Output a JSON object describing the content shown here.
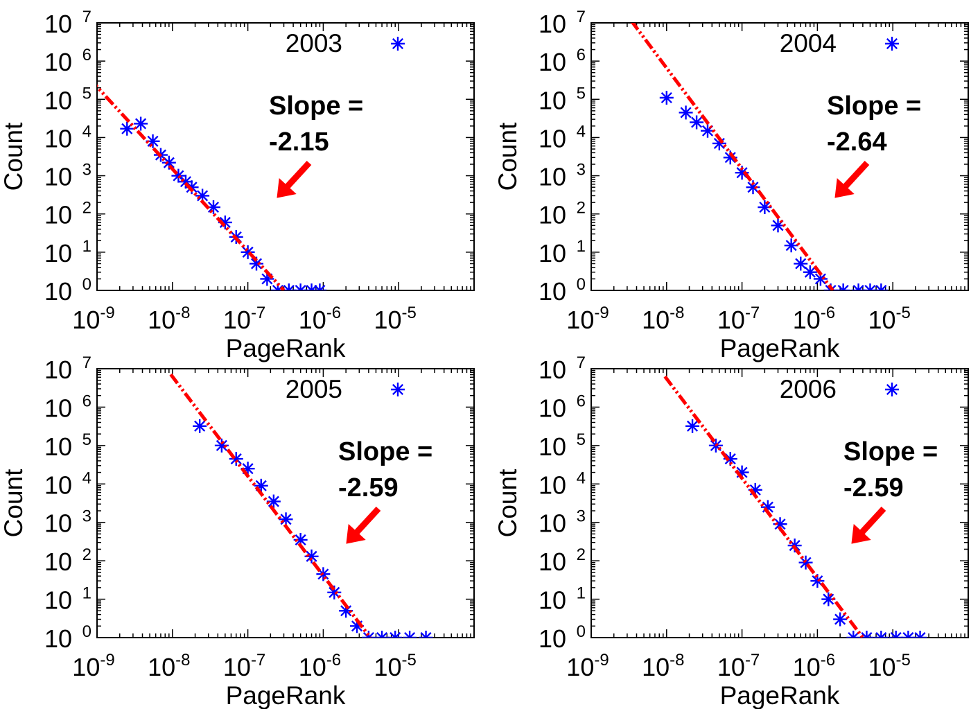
{
  "chart_data": [
    {
      "type": "scatter",
      "title": "",
      "xlabel": "PageRank",
      "ylabel": "Count",
      "xscale": "log",
      "yscale": "log",
      "xlim": [
        1e-09,
        0.0001
      ],
      "ylim": [
        1,
        10000000
      ],
      "x_tick_exponents": [
        "-9",
        "-8",
        "-7",
        "-6",
        "-5"
      ],
      "y_tick_exponents": [
        "0",
        "1",
        "2",
        "3",
        "4",
        "5",
        "6",
        "7"
      ],
      "tick_base": "10",
      "legend": {
        "label": "2003",
        "marker": "asterisk",
        "position": "top-right"
      },
      "series_color": "#0000ff",
      "fit_color": "#ff0000",
      "annotation": {
        "line1": "Slope =",
        "line2": "-2.15"
      },
      "fit_line": {
        "slope": -2.15,
        "x_start": 8e-10,
        "x_end": 3e-07
      },
      "points": [
        {
          "x": 2.5e-09,
          "y": 17000
        },
        {
          "x": 3.8e-09,
          "y": 23000
        },
        {
          "x": 5.5e-09,
          "y": 8000
        },
        {
          "x": 7e-09,
          "y": 3500
        },
        {
          "x": 9e-09,
          "y": 2200
        },
        {
          "x": 1.2e-08,
          "y": 1000
        },
        {
          "x": 1.5e-08,
          "y": 700
        },
        {
          "x": 1.8e-08,
          "y": 500
        },
        {
          "x": 2.5e-08,
          "y": 300
        },
        {
          "x": 3.5e-08,
          "y": 150
        },
        {
          "x": 5e-08,
          "y": 60
        },
        {
          "x": 7e-08,
          "y": 25
        },
        {
          "x": 1e-07,
          "y": 10
        },
        {
          "x": 1.3e-07,
          "y": 5
        },
        {
          "x": 1.8e-07,
          "y": 2
        },
        {
          "x": 2.5e-07,
          "y": 1
        },
        {
          "x": 3.5e-07,
          "y": 1
        },
        {
          "x": 5e-07,
          "y": 1
        },
        {
          "x": 7e-07,
          "y": 1
        },
        {
          "x": 9e-07,
          "y": 1
        }
      ]
    },
    {
      "type": "scatter",
      "title": "",
      "xlabel": "PageRank",
      "ylabel": "Count",
      "xscale": "log",
      "yscale": "log",
      "xlim": [
        1e-09,
        0.0001
      ],
      "ylim": [
        1,
        10000000
      ],
      "x_tick_exponents": [
        "-9",
        "-8",
        "-7",
        "-6",
        "-5"
      ],
      "y_tick_exponents": [
        "0",
        "1",
        "2",
        "3",
        "4",
        "5",
        "6",
        "7"
      ],
      "tick_base": "10",
      "legend": {
        "label": "2004",
        "marker": "asterisk",
        "position": "top-right"
      },
      "series_color": "#0000ff",
      "fit_color": "#ff0000",
      "annotation": {
        "line1": "Slope =",
        "line2": "-2.64"
      },
      "fit_line": {
        "slope": -2.64,
        "x_start": 3.4e-09,
        "x_end": 1.6e-06
      },
      "points": [
        {
          "x": 1e-08,
          "y": 110000
        },
        {
          "x": 1.8e-08,
          "y": 45000
        },
        {
          "x": 2.5e-08,
          "y": 25000
        },
        {
          "x": 3.5e-08,
          "y": 15000
        },
        {
          "x": 5e-08,
          "y": 7000
        },
        {
          "x": 7e-08,
          "y": 3000
        },
        {
          "x": 1e-07,
          "y": 1200
        },
        {
          "x": 1.4e-07,
          "y": 500
        },
        {
          "x": 2e-07,
          "y": 150
        },
        {
          "x": 3e-07,
          "y": 50
        },
        {
          "x": 4.5e-07,
          "y": 15
        },
        {
          "x": 6e-07,
          "y": 5
        },
        {
          "x": 8e-07,
          "y": 3
        },
        {
          "x": 1.1e-06,
          "y": 2
        },
        {
          "x": 1.5e-06,
          "y": 1
        },
        {
          "x": 2.2e-06,
          "y": 1
        },
        {
          "x": 3.5e-06,
          "y": 1
        },
        {
          "x": 5e-06,
          "y": 1
        },
        {
          "x": 7e-06,
          "y": 1
        }
      ]
    },
    {
      "type": "scatter",
      "title": "",
      "xlabel": "PageRank",
      "ylabel": "Count",
      "xscale": "log",
      "yscale": "log",
      "xlim": [
        1e-09,
        0.0001
      ],
      "ylim": [
        1,
        10000000
      ],
      "x_tick_exponents": [
        "-9",
        "-8",
        "-7",
        "-6",
        "-5"
      ],
      "y_tick_exponents": [
        "0",
        "1",
        "2",
        "3",
        "4",
        "5",
        "6",
        "7"
      ],
      "tick_base": "10",
      "legend": {
        "label": "2005",
        "marker": "asterisk",
        "position": "top-right"
      },
      "series_color": "#0000ff",
      "fit_color": "#ff0000",
      "annotation": {
        "line1": "Slope =",
        "line2": "-2.59"
      },
      "fit_line": {
        "slope": -2.59,
        "x_start": 9.5e-09,
        "x_end": 4.2e-06
      },
      "points": [
        {
          "x": 2.3e-08,
          "y": 320000
        },
        {
          "x": 4.5e-08,
          "y": 100000
        },
        {
          "x": 7e-08,
          "y": 45000
        },
        {
          "x": 1e-07,
          "y": 25000
        },
        {
          "x": 1.5e-07,
          "y": 9000
        },
        {
          "x": 2.2e-07,
          "y": 3500
        },
        {
          "x": 3.2e-07,
          "y": 1200
        },
        {
          "x": 5e-07,
          "y": 350
        },
        {
          "x": 7e-07,
          "y": 130
        },
        {
          "x": 1e-06,
          "y": 45
        },
        {
          "x": 1.4e-06,
          "y": 15
        },
        {
          "x": 2e-06,
          "y": 5
        },
        {
          "x": 2.8e-06,
          "y": 2
        },
        {
          "x": 4e-06,
          "y": 1
        },
        {
          "x": 6e-06,
          "y": 1
        },
        {
          "x": 9e-06,
          "y": 1
        },
        {
          "x": 1.4e-05,
          "y": 1
        },
        {
          "x": 2.3e-05,
          "y": 1
        }
      ]
    },
    {
      "type": "scatter",
      "title": "",
      "xlabel": "PageRank",
      "ylabel": "Count",
      "xscale": "log",
      "yscale": "log",
      "xlim": [
        1e-09,
        0.0001
      ],
      "ylim": [
        1,
        10000000
      ],
      "x_tick_exponents": [
        "-9",
        "-8",
        "-7",
        "-6",
        "-5"
      ],
      "y_tick_exponents": [
        "0",
        "1",
        "2",
        "3",
        "4",
        "5",
        "6",
        "7"
      ],
      "tick_base": "10",
      "legend": {
        "label": "2006",
        "marker": "asterisk",
        "position": "top-right"
      },
      "series_color": "#0000ff",
      "fit_color": "#ff0000",
      "annotation": {
        "line1": "Slope =",
        "line2": "-2.59"
      },
      "fit_line": {
        "slope": -2.59,
        "x_start": 9.5e-09,
        "x_end": 4e-06
      },
      "points": [
        {
          "x": 2.2e-08,
          "y": 320000
        },
        {
          "x": 4.5e-08,
          "y": 100000
        },
        {
          "x": 7e-08,
          "y": 45000
        },
        {
          "x": 1e-07,
          "y": 20000
        },
        {
          "x": 1.5e-07,
          "y": 7000
        },
        {
          "x": 2.2e-07,
          "y": 2500
        },
        {
          "x": 3.2e-07,
          "y": 900
        },
        {
          "x": 5e-07,
          "y": 250
        },
        {
          "x": 7e-07,
          "y": 90
        },
        {
          "x": 1e-06,
          "y": 30
        },
        {
          "x": 1.4e-06,
          "y": 10
        },
        {
          "x": 2e-06,
          "y": 3
        },
        {
          "x": 3e-06,
          "y": 1
        },
        {
          "x": 4.5e-06,
          "y": 1
        },
        {
          "x": 7e-06,
          "y": 1
        },
        {
          "x": 1.1e-05,
          "y": 1
        },
        {
          "x": 1.6e-05,
          "y": 1
        },
        {
          "x": 2.3e-05,
          "y": 1
        }
      ]
    }
  ]
}
